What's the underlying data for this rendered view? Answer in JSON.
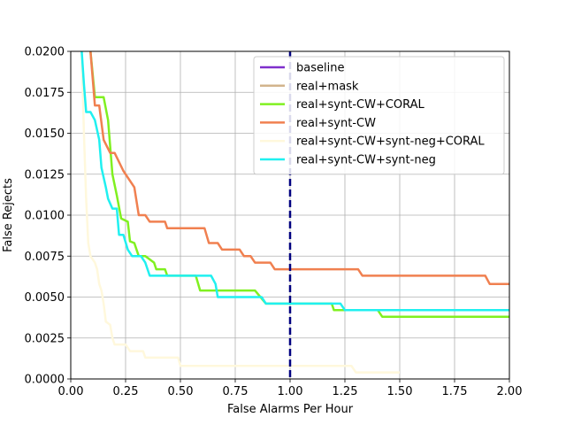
{
  "chart_data": {
    "type": "line",
    "xlabel": "False Alarms Per Hour",
    "ylabel": "False Rejects",
    "xlim": [
      0,
      2.0
    ],
    "ylim": [
      0,
      0.02
    ],
    "xticks": [
      "0.00",
      "0.25",
      "0.50",
      "0.75",
      "1.00",
      "1.25",
      "1.50",
      "1.75",
      "2.00"
    ],
    "yticks": [
      "0.0000",
      "0.0025",
      "0.0050",
      "0.0075",
      "0.0100",
      "0.0125",
      "0.0150",
      "0.0175",
      "0.0200"
    ],
    "grid": true,
    "legend_position": "upper right",
    "reference_line": {
      "x": 1.0,
      "style": "dashed",
      "color": "#000080"
    },
    "series": [
      {
        "name": "baseline",
        "color": "#7f2fcc",
        "points": []
      },
      {
        "name": "real+mask",
        "color": "#d2b48c",
        "points": []
      },
      {
        "name": "real+synt-CW+CORAL",
        "color": "#80f020",
        "points": [
          [
            0.09,
            0.02
          ],
          [
            0.11,
            0.0172
          ],
          [
            0.15,
            0.0172
          ],
          [
            0.17,
            0.0158
          ],
          [
            0.19,
            0.0125
          ],
          [
            0.21,
            0.0112
          ],
          [
            0.23,
            0.0098
          ],
          [
            0.26,
            0.0096
          ],
          [
            0.27,
            0.0084
          ],
          [
            0.29,
            0.0083
          ],
          [
            0.31,
            0.0075
          ],
          [
            0.34,
            0.0075
          ],
          [
            0.38,
            0.0071
          ],
          [
            0.39,
            0.0067
          ],
          [
            0.43,
            0.0067
          ],
          [
            0.44,
            0.0063
          ],
          [
            0.57,
            0.0063
          ],
          [
            0.59,
            0.0054
          ],
          [
            0.84,
            0.0054
          ],
          [
            0.89,
            0.0046
          ],
          [
            1.19,
            0.0046
          ],
          [
            1.2,
            0.0042
          ],
          [
            1.4,
            0.0042
          ],
          [
            1.42,
            0.0038
          ],
          [
            2.0,
            0.0038
          ]
        ]
      },
      {
        "name": "real+synt-CW",
        "color": "#f08050",
        "points": [
          [
            0.09,
            0.02
          ],
          [
            0.11,
            0.0167
          ],
          [
            0.13,
            0.0167
          ],
          [
            0.15,
            0.0146
          ],
          [
            0.18,
            0.0138
          ],
          [
            0.2,
            0.0138
          ],
          [
            0.24,
            0.0127
          ],
          [
            0.29,
            0.0117
          ],
          [
            0.31,
            0.01
          ],
          [
            0.34,
            0.01
          ],
          [
            0.36,
            0.0096
          ],
          [
            0.43,
            0.0096
          ],
          [
            0.44,
            0.0092
          ],
          [
            0.61,
            0.0092
          ],
          [
            0.63,
            0.0083
          ],
          [
            0.67,
            0.0083
          ],
          [
            0.69,
            0.0079
          ],
          [
            0.77,
            0.0079
          ],
          [
            0.79,
            0.0075
          ],
          [
            0.82,
            0.0075
          ],
          [
            0.84,
            0.0071
          ],
          [
            0.91,
            0.0071
          ],
          [
            0.93,
            0.0067
          ],
          [
            1.31,
            0.0067
          ],
          [
            1.33,
            0.0063
          ],
          [
            1.89,
            0.0063
          ],
          [
            1.91,
            0.0058
          ],
          [
            2.0,
            0.0058
          ]
        ]
      },
      {
        "name": "real+synt-CW+synt-neg+CORAL",
        "color": "#fff8dc",
        "points": [
          [
            0.05,
            0.02
          ],
          [
            0.06,
            0.015
          ],
          [
            0.07,
            0.011
          ],
          [
            0.08,
            0.0083
          ],
          [
            0.09,
            0.0075
          ],
          [
            0.11,
            0.0071
          ],
          [
            0.12,
            0.0067
          ],
          [
            0.13,
            0.0058
          ],
          [
            0.14,
            0.0054
          ],
          [
            0.15,
            0.0046
          ],
          [
            0.16,
            0.0035
          ],
          [
            0.18,
            0.0033
          ],
          [
            0.19,
            0.0025
          ],
          [
            0.2,
            0.0021
          ],
          [
            0.25,
            0.0021
          ],
          [
            0.27,
            0.0017
          ],
          [
            0.33,
            0.0017
          ],
          [
            0.34,
            0.0013
          ],
          [
            0.49,
            0.0013
          ],
          [
            0.5,
            0.0008
          ],
          [
            1.28,
            0.0008
          ],
          [
            1.3,
            0.0004
          ],
          [
            1.5,
            0.0004
          ]
        ]
      },
      {
        "name": "real+synt-CW+synt-neg",
        "color": "#20f0f0",
        "points": [
          [
            0.05,
            0.02
          ],
          [
            0.06,
            0.018
          ],
          [
            0.07,
            0.0163
          ],
          [
            0.09,
            0.0163
          ],
          [
            0.11,
            0.0158
          ],
          [
            0.13,
            0.0146
          ],
          [
            0.14,
            0.0129
          ],
          [
            0.16,
            0.0117
          ],
          [
            0.17,
            0.011
          ],
          [
            0.19,
            0.0104
          ],
          [
            0.21,
            0.0104
          ],
          [
            0.22,
            0.0088
          ],
          [
            0.24,
            0.0088
          ],
          [
            0.26,
            0.0079
          ],
          [
            0.28,
            0.0075
          ],
          [
            0.32,
            0.0075
          ],
          [
            0.34,
            0.0071
          ],
          [
            0.36,
            0.0063
          ],
          [
            0.64,
            0.0063
          ],
          [
            0.66,
            0.0058
          ],
          [
            0.67,
            0.005
          ],
          [
            0.87,
            0.005
          ],
          [
            0.89,
            0.0046
          ],
          [
            1.23,
            0.0046
          ],
          [
            1.25,
            0.0042
          ],
          [
            2.0,
            0.0042
          ]
        ]
      }
    ]
  }
}
